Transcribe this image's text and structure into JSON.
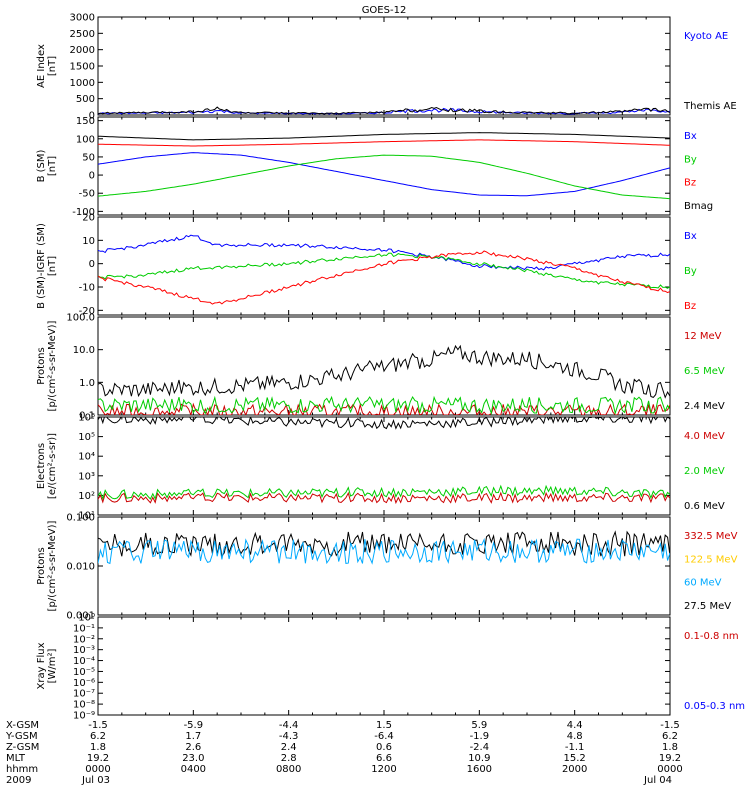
{
  "title": "GOES-12",
  "panels": [
    {
      "id": "ae",
      "ylabel": [
        "AE Index",
        "[nT]"
      ],
      "scale": "linear",
      "ylim": [
        0,
        3000
      ],
      "yticks": [
        0,
        500,
        1000,
        1500,
        2000,
        2500,
        3000
      ],
      "ytick_labels": [
        "0",
        "500",
        "1000",
        "1500",
        "2000",
        "2500",
        "3000"
      ],
      "legend": [
        {
          "text": "Kyoto AE",
          "color": "#0000ff"
        },
        {
          "text": "Themis AE",
          "color": "#000000"
        }
      ]
    },
    {
      "id": "bsm",
      "ylabel": [
        "B (SM)",
        "[nT]"
      ],
      "scale": "linear",
      "ylim": [
        -110,
        160
      ],
      "yticks": [
        -100,
        -50,
        0,
        50,
        100,
        150
      ],
      "ytick_labels": [
        "-100",
        "-50",
        "0",
        "50",
        "100",
        "150"
      ],
      "legend": [
        {
          "text": "Bx",
          "color": "#0000ff"
        },
        {
          "text": "By",
          "color": "#00cc00"
        },
        {
          "text": "Bz",
          "color": "#ff0000"
        },
        {
          "text": "Bmag",
          "color": "#000000"
        }
      ]
    },
    {
      "id": "bigrf",
      "ylabel": [
        "B (SM)-IGRF (SM)",
        "[nT]"
      ],
      "scale": "linear",
      "ylim": [
        -22,
        20
      ],
      "yticks": [
        -20,
        -10,
        0,
        10,
        20
      ],
      "ytick_labels": [
        "-20",
        "-10",
        "0",
        "10",
        "20"
      ],
      "legend": [
        {
          "text": "Bx",
          "color": "#0000ff"
        },
        {
          "text": "By",
          "color": "#00cc00"
        },
        {
          "text": "Bz",
          "color": "#ff0000"
        }
      ]
    },
    {
      "id": "protons_hi",
      "ylabel": [
        "Protons",
        "[p/(cm²-s-sr-MeV)]"
      ],
      "scale": "log",
      "ylim": [
        0.1,
        100
      ],
      "yticks": [
        0.1,
        1,
        10,
        100
      ],
      "ytick_labels": [
        "0.1",
        "1.0",
        "10.0",
        "100.0"
      ],
      "legend": [
        {
          "text": "12 MeV",
          "color": "#cc0000"
        },
        {
          "text": "6.5 MeV",
          "color": "#00cc00"
        },
        {
          "text": "2.4 MeV",
          "color": "#000000"
        }
      ]
    },
    {
      "id": "electrons",
      "ylabel": [
        "Electrons",
        "[e/(cm²-s-sr)]"
      ],
      "scale": "log",
      "ylim": [
        10,
        1000000
      ],
      "yticks": [
        10,
        100,
        1000,
        10000,
        100000,
        1000000
      ],
      "ytick_labels": [
        "10¹",
        "10²",
        "10³",
        "10⁴",
        "10⁵",
        "10⁶"
      ],
      "legend": [
        {
          "text": "4.0 MeV",
          "color": "#cc0000"
        },
        {
          "text": "2.0 MeV",
          "color": "#00cc00"
        },
        {
          "text": "0.6 MeV",
          "color": "#000000"
        }
      ]
    },
    {
      "id": "protons_lo",
      "ylabel": [
        "Protons",
        "[p/(cm²-s-sr-MeV)]"
      ],
      "scale": "log",
      "ylim": [
        0.001,
        0.1
      ],
      "yticks": [
        0.001,
        0.01,
        0.1
      ],
      "ytick_labels": [
        "0.001",
        "0.010",
        "0.100"
      ],
      "legend": [
        {
          "text": "332.5 MeV",
          "color": "#cc0000"
        },
        {
          "text": "122.5 MeV",
          "color": "#ffcc00"
        },
        {
          "text": "60 MeV",
          "color": "#00aaff"
        },
        {
          "text": "27.5 MeV",
          "color": "#000000"
        }
      ]
    },
    {
      "id": "xray",
      "ylabel": [
        "Xray Flux",
        "[W/m²]"
      ],
      "scale": "log",
      "ylim": [
        1e-09,
        1
      ],
      "yticks": [
        1e-09,
        1e-08,
        1e-07,
        1e-06,
        1e-05,
        0.0001,
        0.001,
        0.01,
        0.1,
        1
      ],
      "ytick_labels": [
        "10⁻⁹",
        "10⁻⁸",
        "10⁻⁷",
        "10⁻⁶",
        "10⁻⁵",
        "10⁻⁴",
        "10⁻³",
        "10⁻²",
        "10⁻¹",
        "10⁰"
      ],
      "legend": [
        {
          "text": "0.1-0.8 nm",
          "color": "#cc0000"
        },
        {
          "text": "0.05-0.3 nm",
          "color": "#0000ff"
        }
      ]
    }
  ],
  "footer": {
    "row_labels": [
      "X-GSM",
      "Y-GSM",
      "Z-GSM",
      "MLT",
      "hhmm",
      "2009"
    ],
    "columns": [
      [
        "-1.5",
        "6.2",
        "1.8",
        "19.2",
        "0000",
        "Jul 03"
      ],
      [
        "-5.9",
        "1.7",
        "2.6",
        "23.0",
        "0400",
        ""
      ],
      [
        "-4.4",
        "-4.3",
        "2.4",
        "2.8",
        "0800",
        ""
      ],
      [
        "1.5",
        "-6.4",
        "0.6",
        "6.6",
        "1200",
        ""
      ],
      [
        "5.9",
        "-1.9",
        "-2.4",
        "10.9",
        "1600",
        ""
      ],
      [
        "4.4",
        "4.8",
        "-1.1",
        "15.2",
        "2000",
        ""
      ],
      [
        "-1.5",
        "6.2",
        "1.8",
        "19.2",
        "0000",
        "Jul 04"
      ]
    ]
  },
  "chart_data": {
    "type": "line",
    "title": "GOES-12",
    "x_unit": "hours since 2009-07-03 00:00 UT",
    "xlim": [
      0,
      24
    ],
    "series": [
      {
        "panel": "ae",
        "name": "Kyoto AE",
        "color": "#0000ff",
        "x": [
          0,
          2,
          4,
          5,
          6,
          8,
          10,
          12,
          13,
          14,
          15,
          16,
          18,
          20,
          22,
          23,
          24
        ],
        "y": [
          50,
          60,
          80,
          130,
          60,
          50,
          40,
          70,
          120,
          150,
          140,
          100,
          60,
          50,
          80,
          140,
          90
        ]
      },
      {
        "panel": "ae",
        "name": "Themis AE",
        "color": "#000000",
        "x": [
          0,
          2,
          4,
          5,
          6,
          8,
          10,
          12,
          13,
          14,
          15,
          16,
          18,
          20,
          22,
          23,
          24
        ],
        "y": [
          60,
          70,
          100,
          180,
          70,
          60,
          50,
          80,
          150,
          180,
          160,
          120,
          70,
          60,
          100,
          180,
          110
        ]
      },
      {
        "panel": "bsm",
        "name": "Bx",
        "color": "#0000ff",
        "x": [
          0,
          2,
          4,
          6,
          8,
          10,
          12,
          14,
          16,
          18,
          20,
          22,
          24
        ],
        "y": [
          30,
          50,
          62,
          55,
          35,
          10,
          -15,
          -40,
          -55,
          -57,
          -45,
          -15,
          20
        ]
      },
      {
        "panel": "bsm",
        "name": "By",
        "color": "#00cc00",
        "x": [
          0,
          2,
          4,
          6,
          8,
          10,
          12,
          14,
          16,
          18,
          20,
          22,
          24
        ],
        "y": [
          -58,
          -45,
          -25,
          0,
          25,
          45,
          55,
          52,
          35,
          5,
          -30,
          -55,
          -65
        ]
      },
      {
        "panel": "bsm",
        "name": "Bz",
        "color": "#ff0000",
        "x": [
          0,
          4,
          8,
          12,
          16,
          20,
          24
        ],
        "y": [
          85,
          80,
          85,
          92,
          97,
          92,
          82
        ]
      },
      {
        "panel": "bsm",
        "name": "Bmag",
        "color": "#000000",
        "x": [
          0,
          4,
          8,
          12,
          16,
          20,
          24
        ],
        "y": [
          107,
          97,
          102,
          112,
          117,
          112,
          102
        ]
      },
      {
        "panel": "bigrf",
        "name": "Bx",
        "color": "#0000ff",
        "x": [
          0,
          2,
          4,
          5,
          6,
          8,
          10,
          12,
          14,
          16,
          18,
          19,
          20,
          22,
          24
        ],
        "y": [
          5,
          8,
          12,
          8,
          8,
          8,
          7,
          6,
          3,
          -1,
          -2,
          -2,
          0,
          3,
          4
        ]
      },
      {
        "panel": "bigrf",
        "name": "By",
        "color": "#00cc00",
        "x": [
          0,
          2,
          4,
          6,
          8,
          10,
          12,
          14,
          16,
          18,
          20,
          22,
          24
        ],
        "y": [
          -6,
          -5,
          -2,
          -1,
          0,
          2,
          4,
          3,
          0,
          -3,
          -7,
          -9,
          -10
        ]
      },
      {
        "panel": "bigrf",
        "name": "Bz",
        "color": "#ff0000",
        "x": [
          0,
          2,
          4,
          5,
          6,
          8,
          10,
          12,
          14,
          16,
          18,
          20,
          22,
          24
        ],
        "y": [
          -6,
          -10,
          -15,
          -17,
          -15,
          -10,
          -5,
          0,
          3,
          5,
          2,
          -2,
          -8,
          -12
        ]
      },
      {
        "panel": "protons_hi",
        "name": "12 MeV",
        "color": "#cc0000",
        "x": [
          0,
          4,
          8,
          12,
          16,
          20,
          24
        ],
        "y": [
          0.12,
          0.12,
          0.12,
          0.12,
          0.12,
          0.12,
          0.12
        ]
      },
      {
        "panel": "protons_hi",
        "name": "6.5 MeV",
        "color": "#00cc00",
        "x": [
          0,
          4,
          8,
          12,
          16,
          20,
          24
        ],
        "y": [
          0.2,
          0.2,
          0.2,
          0.2,
          0.2,
          0.2,
          0.2
        ]
      },
      {
        "panel": "protons_hi",
        "name": "2.4 MeV",
        "color": "#000000",
        "x": [
          0,
          2,
          4,
          6,
          8,
          10,
          12,
          14,
          15,
          16,
          18,
          20,
          22,
          24
        ],
        "y": [
          0.6,
          0.6,
          0.7,
          0.8,
          1,
          1.5,
          3,
          5,
          8,
          6,
          5,
          2.5,
          0.8,
          0.5
        ]
      },
      {
        "panel": "electrons",
        "name": "4.0 MeV",
        "color": "#cc0000",
        "x": [
          0,
          4,
          8,
          12,
          16,
          20,
          24
        ],
        "y": [
          75,
          75,
          75,
          75,
          75,
          75,
          75
        ]
      },
      {
        "panel": "electrons",
        "name": "2.0 MeV",
        "color": "#00cc00",
        "x": [
          0,
          4,
          8,
          12,
          16,
          20,
          22,
          24
        ],
        "y": [
          110,
          120,
          130,
          150,
          170,
          170,
          140,
          110
        ]
      },
      {
        "panel": "electrons",
        "name": "0.6 MeV",
        "color": "#000000",
        "x": [
          0,
          4,
          8,
          12,
          16,
          20,
          24
        ],
        "y": [
          850000,
          750000,
          550000,
          450000,
          550000,
          850000,
          800000
        ]
      },
      {
        "panel": "protons_lo",
        "name": "27.5 MeV",
        "color": "#000000",
        "x": [
          0,
          4,
          8,
          12,
          16,
          20,
          24
        ],
        "y": [
          0.028,
          0.028,
          0.028,
          0.028,
          0.028,
          0.028,
          0.028
        ]
      },
      {
        "panel": "protons_lo",
        "name": "60 MeV",
        "color": "#00aaff",
        "x": [
          0,
          4,
          8,
          12,
          16,
          20,
          24
        ],
        "y": [
          0.02,
          0.02,
          0.02,
          0.02,
          0.02,
          0.02,
          0.02
        ]
      }
    ]
  }
}
